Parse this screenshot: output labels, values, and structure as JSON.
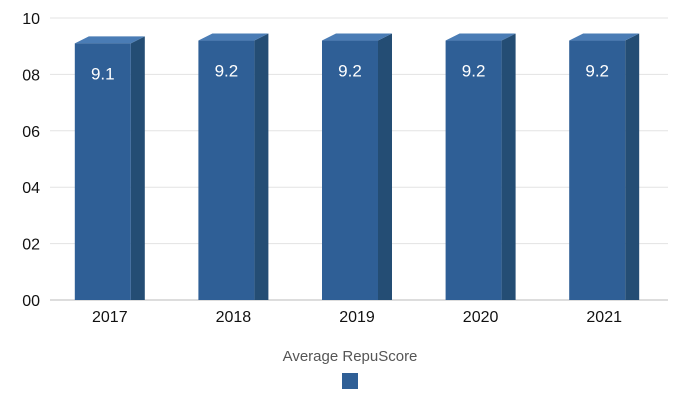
{
  "chart_data": {
    "type": "bar",
    "title": "",
    "xlabel": "",
    "ylabel": "",
    "categories": [
      "2017",
      "2018",
      "2019",
      "2020",
      "2021"
    ],
    "series": [
      {
        "name": "Average RepuScore",
        "values": [
          9.1,
          9.2,
          9.2,
          9.2,
          9.2
        ]
      }
    ],
    "data_labels": [
      "9.1",
      "9.2",
      "9.2",
      "9.2",
      "9.2"
    ],
    "y_tick_labels": [
      "00",
      "02",
      "04",
      "06",
      "08",
      "10"
    ],
    "y_ticks": [
      0,
      2,
      4,
      6,
      8,
      10
    ],
    "ylim": [
      0,
      10
    ],
    "grid": true,
    "legend_position": "bottom-center",
    "colors": {
      "bar_front": "#2f5f96",
      "bar_side": "#244d74",
      "bar_top": "#4a7cb5",
      "grid": "#e3e3e3",
      "axis": "#bbbbbb"
    }
  }
}
